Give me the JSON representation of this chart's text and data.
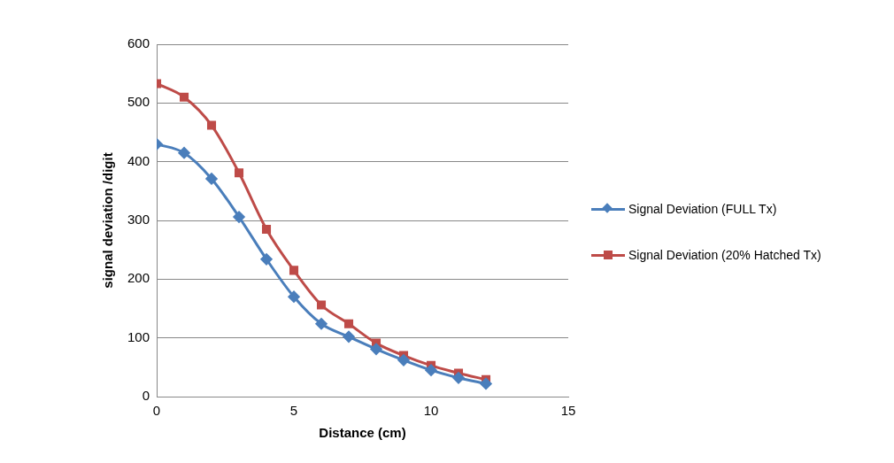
{
  "chart_data": {
    "type": "line",
    "xlabel": "Distance (cm)",
    "ylabel": "signal deviation /digit",
    "x": [
      0,
      1,
      2,
      3,
      4,
      5,
      6,
      7,
      8,
      9,
      10,
      11,
      12
    ],
    "series": [
      {
        "name": "Signal Deviation (FULL Tx)",
        "color": "#4a7ebb",
        "marker": "diamond",
        "values": [
          430,
          415,
          371,
          306,
          234,
          170,
          124,
          102,
          81,
          62,
          45,
          32,
          22
        ]
      },
      {
        "name": "Signal Deviation (20% Hatched Tx)",
        "color": "#be4b48",
        "marker": "square",
        "values": [
          533,
          510,
          462,
          381,
          285,
          215,
          156,
          124,
          91,
          70,
          53,
          40,
          29
        ]
      }
    ],
    "xlim": [
      0,
      15
    ],
    "xticks": [
      0,
      5,
      10,
      15
    ],
    "ylim": [
      0,
      600
    ],
    "yticks": [
      0,
      100,
      200,
      300,
      400,
      500,
      600
    ],
    "grid": "y",
    "legend": "right",
    "line_style": "solid"
  }
}
